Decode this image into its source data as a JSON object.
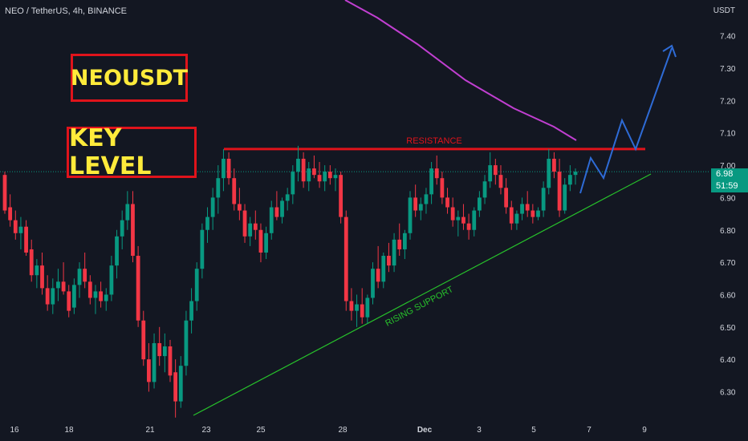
{
  "header": {
    "text": "NEO / TetherUS, 4h, BINANCE"
  },
  "axis": {
    "unit": "USDT"
  },
  "labels": {
    "symbol": "NEOUSDT",
    "key_level": "KEY LEVEL"
  },
  "annotations": {
    "resistance": "RESISTANCE",
    "support": "RISING SUPPORT"
  },
  "price_tag": {
    "price": "6.98",
    "countdown": "51:59"
  },
  "colors": {
    "background": "#131722",
    "up": "#089981",
    "down": "#f23645",
    "resistance": "#e0131b",
    "support": "#27c22b",
    "ma": "#c13fd1",
    "projection": "#2e6bd6",
    "label_text": "#ffeb3b"
  },
  "chart_data": {
    "type": "candlestick",
    "y_axis": {
      "min": 6.25,
      "max": 7.5,
      "ticks": [
        "7.40",
        "7.30",
        "7.20",
        "7.10",
        "7.00",
        "6.90",
        "6.80",
        "6.70",
        "6.60",
        "6.50",
        "6.40",
        "6.30"
      ]
    },
    "x_axis": {
      "ticks": [
        "16",
        "18",
        "21",
        "23",
        "25",
        "28",
        "Dec",
        "3",
        "5",
        "7",
        "9"
      ]
    },
    "resistance_level": 7.05,
    "support_line": [
      [
        22.6,
        6.27
      ],
      [
        28.2,
        6.47
      ],
      [
        33.8,
        6.89
      ]
    ],
    "ma_line": [
      [
        27.4,
        7.5
      ],
      [
        28.5,
        7.42
      ],
      [
        29.7,
        7.31
      ],
      [
        30.8,
        7.22
      ],
      [
        31.9,
        7.14
      ],
      [
        33.1,
        7.09
      ]
    ],
    "projection": [
      [
        33.2,
        6.94
      ],
      [
        33.5,
        7.04
      ],
      [
        33.9,
        6.99
      ],
      [
        34.5,
        7.15
      ],
      [
        35.0,
        7.06
      ],
      [
        35.8,
        7.38
      ]
    ],
    "price_line": 6.98,
    "candles": [
      [
        6.97,
        6.98,
        6.85,
        6.86
      ],
      [
        6.87,
        6.91,
        6.81,
        6.83
      ],
      [
        6.83,
        6.86,
        6.77,
        6.79
      ],
      [
        6.79,
        6.84,
        6.74,
        6.81
      ],
      [
        6.81,
        6.83,
        6.72,
        6.73
      ],
      [
        6.74,
        6.77,
        6.64,
        6.66
      ],
      [
        6.66,
        6.71,
        6.62,
        6.69
      ],
      [
        6.69,
        6.73,
        6.6,
        6.62
      ],
      [
        6.62,
        6.66,
        6.55,
        6.57
      ],
      [
        6.57,
        6.65,
        6.54,
        6.62
      ],
      [
        6.62,
        6.68,
        6.58,
        6.64
      ],
      [
        6.64,
        6.7,
        6.6,
        6.61
      ],
      [
        6.61,
        6.63,
        6.53,
        6.55
      ],
      [
        6.56,
        6.65,
        6.54,
        6.63
      ],
      [
        6.63,
        6.7,
        6.59,
        6.68
      ],
      [
        6.68,
        6.73,
        6.62,
        6.64
      ],
      [
        6.64,
        6.66,
        6.57,
        6.59
      ],
      [
        6.59,
        6.63,
        6.54,
        6.61
      ],
      [
        6.61,
        6.64,
        6.56,
        6.58
      ],
      [
        6.58,
        6.62,
        6.55,
        6.6
      ],
      [
        6.6,
        6.72,
        6.58,
        6.69
      ],
      [
        6.69,
        6.8,
        6.65,
        6.78
      ],
      [
        6.78,
        6.86,
        6.74,
        6.83
      ],
      [
        6.83,
        6.92,
        6.8,
        6.88
      ],
      [
        6.88,
        6.92,
        6.7,
        6.72
      ],
      [
        6.72,
        6.75,
        6.5,
        6.52
      ],
      [
        6.52,
        6.55,
        6.38,
        6.4
      ],
      [
        6.4,
        6.45,
        6.3,
        6.33
      ],
      [
        6.33,
        6.48,
        6.31,
        6.45
      ],
      [
        6.45,
        6.5,
        6.38,
        6.41
      ],
      [
        6.41,
        6.48,
        6.36,
        6.44
      ],
      [
        6.44,
        6.46,
        6.33,
        6.35
      ],
      [
        6.36,
        6.4,
        6.22,
        6.27
      ],
      [
        6.27,
        6.41,
        6.25,
        6.38
      ],
      [
        6.38,
        6.55,
        6.35,
        6.52
      ],
      [
        6.52,
        6.62,
        6.48,
        6.58
      ],
      [
        6.58,
        6.7,
        6.55,
        6.68
      ],
      [
        6.68,
        6.82,
        6.65,
        6.8
      ],
      [
        6.8,
        6.87,
        6.76,
        6.84
      ],
      [
        6.84,
        6.93,
        6.8,
        6.9
      ],
      [
        6.9,
        7.0,
        6.85,
        6.96
      ],
      [
        6.96,
        7.05,
        6.92,
        7.02
      ],
      [
        7.02,
        7.04,
        6.94,
        6.96
      ],
      [
        6.96,
        6.99,
        6.86,
        6.88
      ],
      [
        6.88,
        6.93,
        6.83,
        6.86
      ],
      [
        6.86,
        6.88,
        6.76,
        6.78
      ],
      [
        6.78,
        6.84,
        6.75,
        6.82
      ],
      [
        6.82,
        6.86,
        6.77,
        6.8
      ],
      [
        6.8,
        6.82,
        6.7,
        6.73
      ],
      [
        6.73,
        6.81,
        6.71,
        6.79
      ],
      [
        6.79,
        6.89,
        6.77,
        6.87
      ],
      [
        6.87,
        6.92,
        6.83,
        6.84
      ],
      [
        6.84,
        6.9,
        6.82,
        6.89
      ],
      [
        6.89,
        6.93,
        6.86,
        6.91
      ],
      [
        6.91,
        7.0,
        6.88,
        6.98
      ],
      [
        6.98,
        7.06,
        6.95,
        7.02
      ],
      [
        7.02,
        7.04,
        6.93,
        6.95
      ],
      [
        6.95,
        7.01,
        6.92,
        6.99
      ],
      [
        6.99,
        7.03,
        6.96,
        6.97
      ],
      [
        6.97,
        7.01,
        6.93,
        6.95
      ],
      [
        6.95,
        7.0,
        6.92,
        6.98
      ],
      [
        6.98,
        7.0,
        6.94,
        6.96
      ],
      [
        6.96,
        6.99,
        6.92,
        6.97
      ],
      [
        6.97,
        6.98,
        6.82,
        6.84
      ],
      [
        6.84,
        6.86,
        6.55,
        6.58
      ],
      [
        6.58,
        6.62,
        6.52,
        6.55
      ],
      [
        6.55,
        6.6,
        6.5,
        6.57
      ],
      [
        6.57,
        6.62,
        6.51,
        6.53
      ],
      [
        6.53,
        6.6,
        6.51,
        6.59
      ],
      [
        6.59,
        6.7,
        6.57,
        6.68
      ],
      [
        6.68,
        6.75,
        6.62,
        6.64
      ],
      [
        6.64,
        6.73,
        6.62,
        6.72
      ],
      [
        6.72,
        6.76,
        6.67,
        6.69
      ],
      [
        6.69,
        6.79,
        6.67,
        6.77
      ],
      [
        6.77,
        6.82,
        6.72,
        6.74
      ],
      [
        6.74,
        6.8,
        6.71,
        6.79
      ],
      [
        6.79,
        6.92,
        6.77,
        6.9
      ],
      [
        6.9,
        6.94,
        6.84,
        6.86
      ],
      [
        6.86,
        6.9,
        6.83,
        6.88
      ],
      [
        6.88,
        6.93,
        6.85,
        6.91
      ],
      [
        6.91,
        7.01,
        6.88,
        6.99
      ],
      [
        6.99,
        7.03,
        6.94,
        6.96
      ],
      [
        6.96,
        6.98,
        6.88,
        6.9
      ],
      [
        6.9,
        6.93,
        6.85,
        6.87
      ],
      [
        6.87,
        6.9,
        6.81,
        6.83
      ],
      [
        6.83,
        6.86,
        6.78,
        6.84
      ],
      [
        6.84,
        6.88,
        6.8,
        6.82
      ],
      [
        6.82,
        6.85,
        6.77,
        6.8
      ],
      [
        6.8,
        6.87,
        6.78,
        6.86
      ],
      [
        6.86,
        6.92,
        6.84,
        6.9
      ],
      [
        6.9,
        6.97,
        6.88,
        6.95
      ],
      [
        6.95,
        7.04,
        6.93,
        7.0
      ],
      [
        7.0,
        7.02,
        6.94,
        6.97
      ],
      [
        6.97,
        7.0,
        6.91,
        6.93
      ],
      [
        6.93,
        6.96,
        6.85,
        6.87
      ],
      [
        6.87,
        6.89,
        6.8,
        6.82
      ],
      [
        6.82,
        6.86,
        6.8,
        6.85
      ],
      [
        6.85,
        6.9,
        6.83,
        6.88
      ],
      [
        6.88,
        6.92,
        6.84,
        6.86
      ],
      [
        6.86,
        6.88,
        6.82,
        6.84
      ],
      [
        6.84,
        6.87,
        6.83,
        6.86
      ],
      [
        6.86,
        6.95,
        6.84,
        6.93
      ],
      [
        6.93,
        7.05,
        6.91,
        7.02
      ],
      [
        7.02,
        7.04,
        6.96,
        6.98
      ],
      [
        6.98,
        7.02,
        6.84,
        6.86
      ],
      [
        6.86,
        6.96,
        6.85,
        6.94
      ],
      [
        6.94,
        7.0,
        6.92,
        6.97
      ],
      [
        6.97,
        6.99,
        6.94,
        6.98
      ]
    ]
  }
}
